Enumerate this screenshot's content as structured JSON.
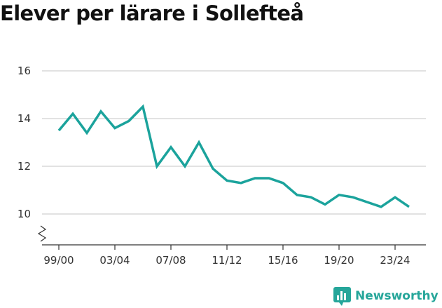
{
  "chart_data": {
    "type": "line",
    "title": "Elever per lärare i Sollefteå",
    "xlabel": "",
    "ylabel": "",
    "x": [
      "99/00",
      "00/01",
      "01/02",
      "02/03",
      "03/04",
      "04/05",
      "05/06",
      "06/07",
      "07/08",
      "08/09",
      "09/10",
      "10/11",
      "11/12",
      "12/13",
      "13/14",
      "14/15",
      "15/16",
      "16/17",
      "17/18",
      "18/19",
      "19/20",
      "20/21",
      "21/22",
      "22/23",
      "23/24",
      "24/25"
    ],
    "x_tick_labels": [
      "99/00",
      "03/04",
      "07/08",
      "11/12",
      "15/16",
      "19/20",
      "23/24"
    ],
    "y_ticks": [
      "10",
      "12",
      "14",
      "16"
    ],
    "ylim": [
      10,
      16
    ],
    "axis_break": true,
    "grid": true,
    "series": [
      {
        "color": "#1ba39c",
        "values": [
          13.5,
          14.2,
          13.4,
          14.3,
          13.6,
          13.9,
          14.5,
          12.0,
          12.8,
          12.0,
          13.0,
          11.9,
          11.4,
          11.3,
          11.5,
          11.5,
          11.3,
          10.8,
          10.7,
          10.4,
          10.8,
          10.7,
          10.5,
          10.3,
          10.7,
          10.3
        ]
      }
    ]
  },
  "brand": {
    "name": "Newsworthy",
    "icon": "bar-chart-logo-icon",
    "color": "#26a69a"
  }
}
